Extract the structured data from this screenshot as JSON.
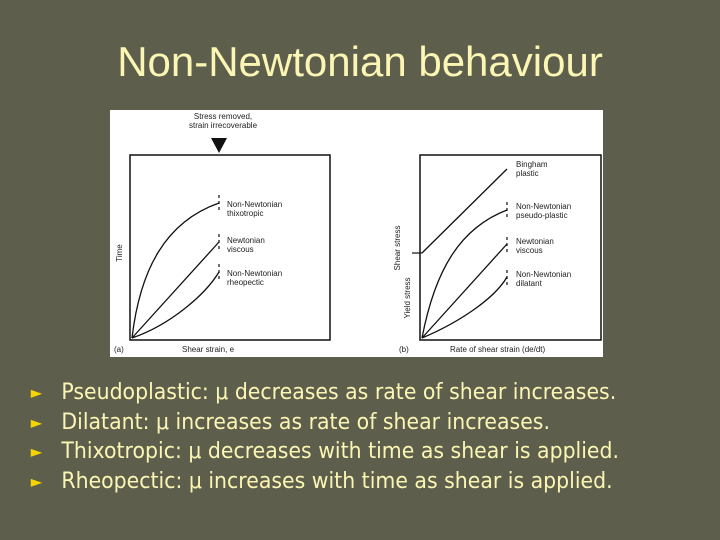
{
  "slide": {
    "title": "Non-Newtonian behaviour",
    "bullet_symbol": "►",
    "bullets": [
      "Pseudoplastic: μ decreases as rate of shear increases.",
      "Dilatant: μ increases as rate of shear increases.",
      "Thixotropic: μ decreases with time as shear is applied.",
      "Rheopectic: μ increases with time as shear is applied."
    ]
  },
  "figure": {
    "panel_a": {
      "tag": "(a)",
      "x_label": "Shear strain, e",
      "y_label": "Time",
      "annotation_line1": "Stress removed,",
      "annotation_line2": "strain irrecoverable",
      "curves": [
        {
          "line1": "Non-Newtonian",
          "line2": "thixotropic"
        },
        {
          "line1": "Newtonian",
          "line2": "viscous"
        },
        {
          "line1": "Non-Newtonian",
          "line2": "rheopectic"
        }
      ]
    },
    "panel_b": {
      "tag": "(b)",
      "x_label": "Rate of shear strain  (de/dt)",
      "y_label": "Shear stress",
      "y_sub_label": "Yield stress",
      "curves": [
        {
          "line1": "Bingham",
          "line2": "plastic"
        },
        {
          "line1": "Non-Newtonian",
          "line2": "pseudo-plastic"
        },
        {
          "line1": "Newtonian",
          "line2": "viscous"
        },
        {
          "line1": "Non-Newtonian",
          "line2": "dilatant"
        }
      ]
    },
    "colors": {
      "background": "#5e5e4d",
      "text": "#fbf6b4",
      "bullet": "#f6d400"
    }
  }
}
